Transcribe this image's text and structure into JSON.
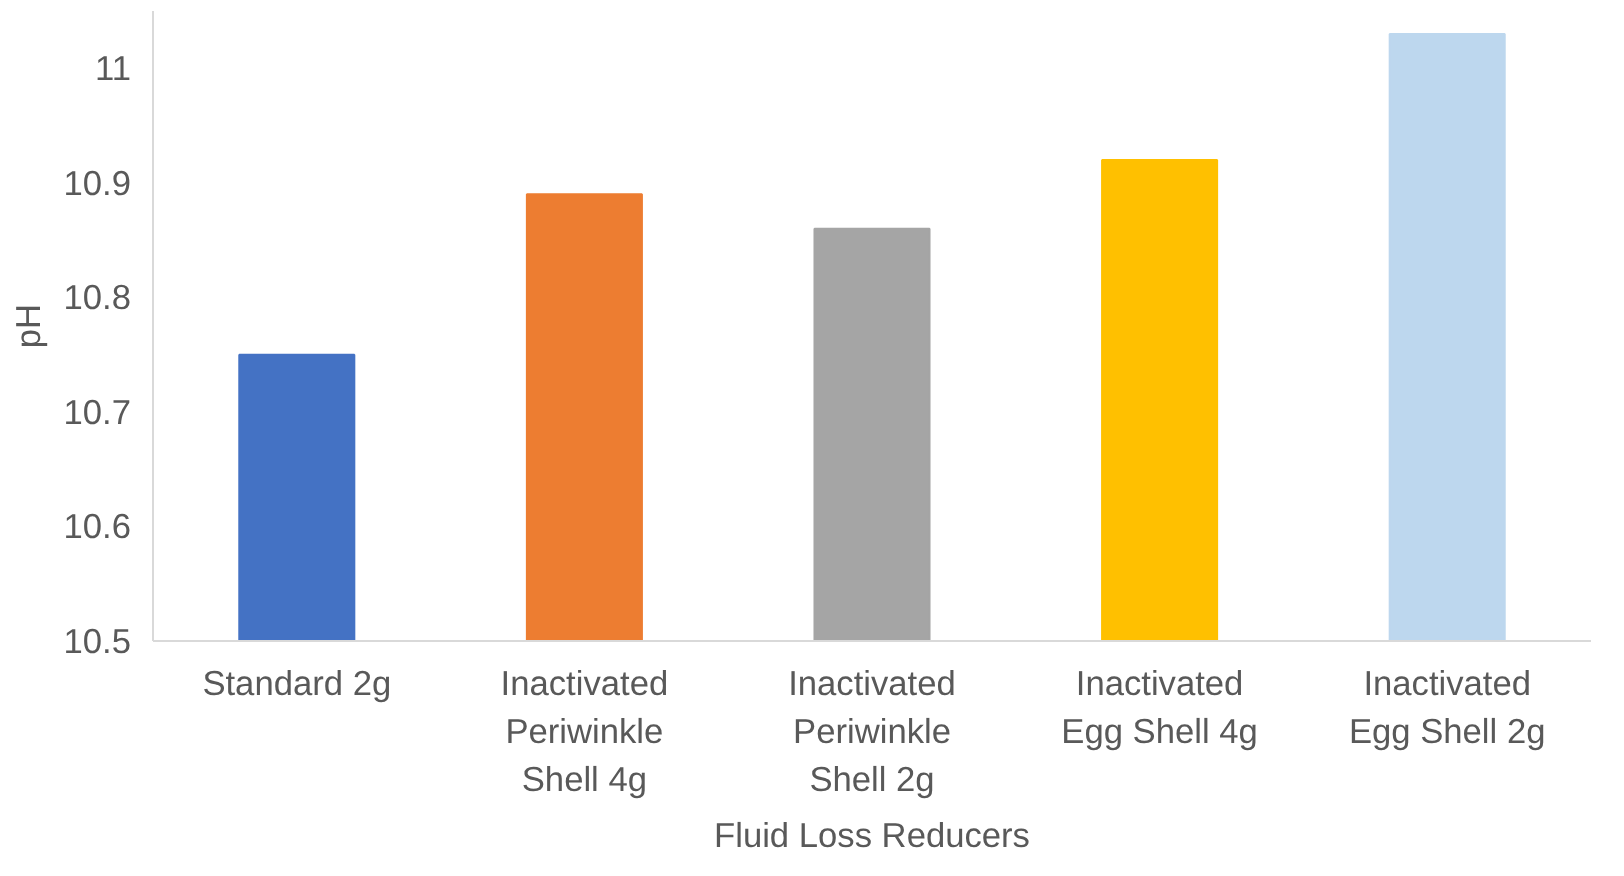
{
  "chart_data": {
    "type": "bar",
    "xlabel": "Fluid Loss Reducers",
    "ylabel": "pH",
    "categories": [
      "Standard 2g",
      "Inactivated Periwinkle Shell 4g",
      "Inactivated Periwinkle Shell 2g",
      "Inactivated Egg Shell 4g",
      "Inactivated Egg Shell 2g"
    ],
    "values": [
      10.75,
      10.89,
      10.86,
      10.92,
      11.03
    ],
    "colors": [
      "#4472c4",
      "#ed7d31",
      "#a5a5a5",
      "#ffc000",
      "#bdd7ee"
    ],
    "ylim": [
      10.5,
      11.05
    ],
    "yticks": [
      10.5,
      10.6,
      10.7,
      10.8,
      10.9,
      11
    ],
    "grid": false
  }
}
